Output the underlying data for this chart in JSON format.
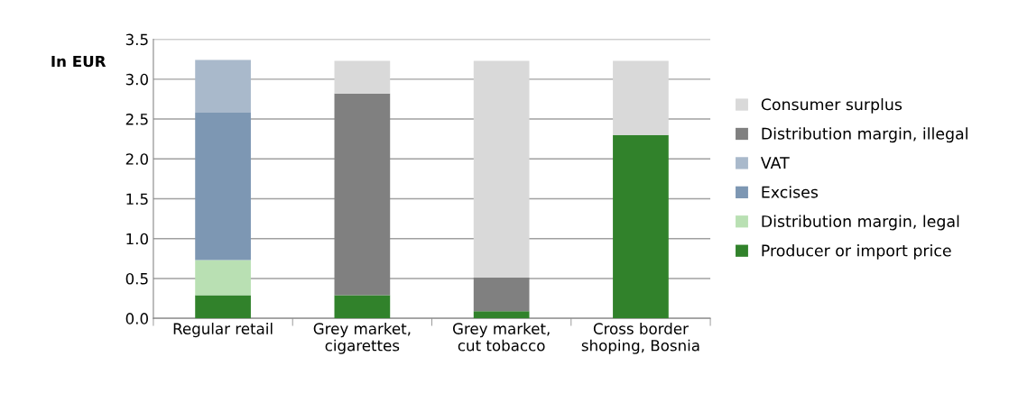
{
  "chart_data": {
    "type": "bar",
    "stacked": true,
    "ylabel": "In EUR",
    "categories": [
      "Regular retail",
      "Grey market,\ncigarettes",
      "Grey market,\ncut tobacco",
      "Cross border\nshoping, Bosnia"
    ],
    "series": [
      {
        "name": "Producer or import price",
        "color": "#31822b",
        "values": [
          0.29,
          0.29,
          0.09,
          2.3
        ]
      },
      {
        "name": "Distribution margin, legal",
        "color": "#b9e0b3",
        "values": [
          0.44,
          null,
          null,
          null
        ]
      },
      {
        "name": "Excises",
        "color": "#7d97b3",
        "values": [
          1.85,
          null,
          null,
          null
        ]
      },
      {
        "name": "VAT",
        "color": "#a9b9cb",
        "values": [
          0.66,
          null,
          null,
          null
        ]
      },
      {
        "name": "Distribution margin, illegal",
        "color": "#808080",
        "values": [
          null,
          2.53,
          0.42,
          null
        ]
      },
      {
        "name": "Consumer surplus",
        "color": "#d9d9d9",
        "values": [
          null,
          0.41,
          2.72,
          0.93
        ]
      }
    ],
    "ylim": [
      0,
      3.5
    ],
    "yticks": [
      {
        "value": 0,
        "label": "0.0"
      },
      0.5,
      {
        "value": 1,
        "label": "1.0"
      },
      1.5,
      {
        "value": 2,
        "label": "2.0"
      },
      2.5,
      {
        "value": 3,
        "label": "3.0"
      },
      3.5
    ],
    "grid": "y",
    "legend": "right"
  }
}
